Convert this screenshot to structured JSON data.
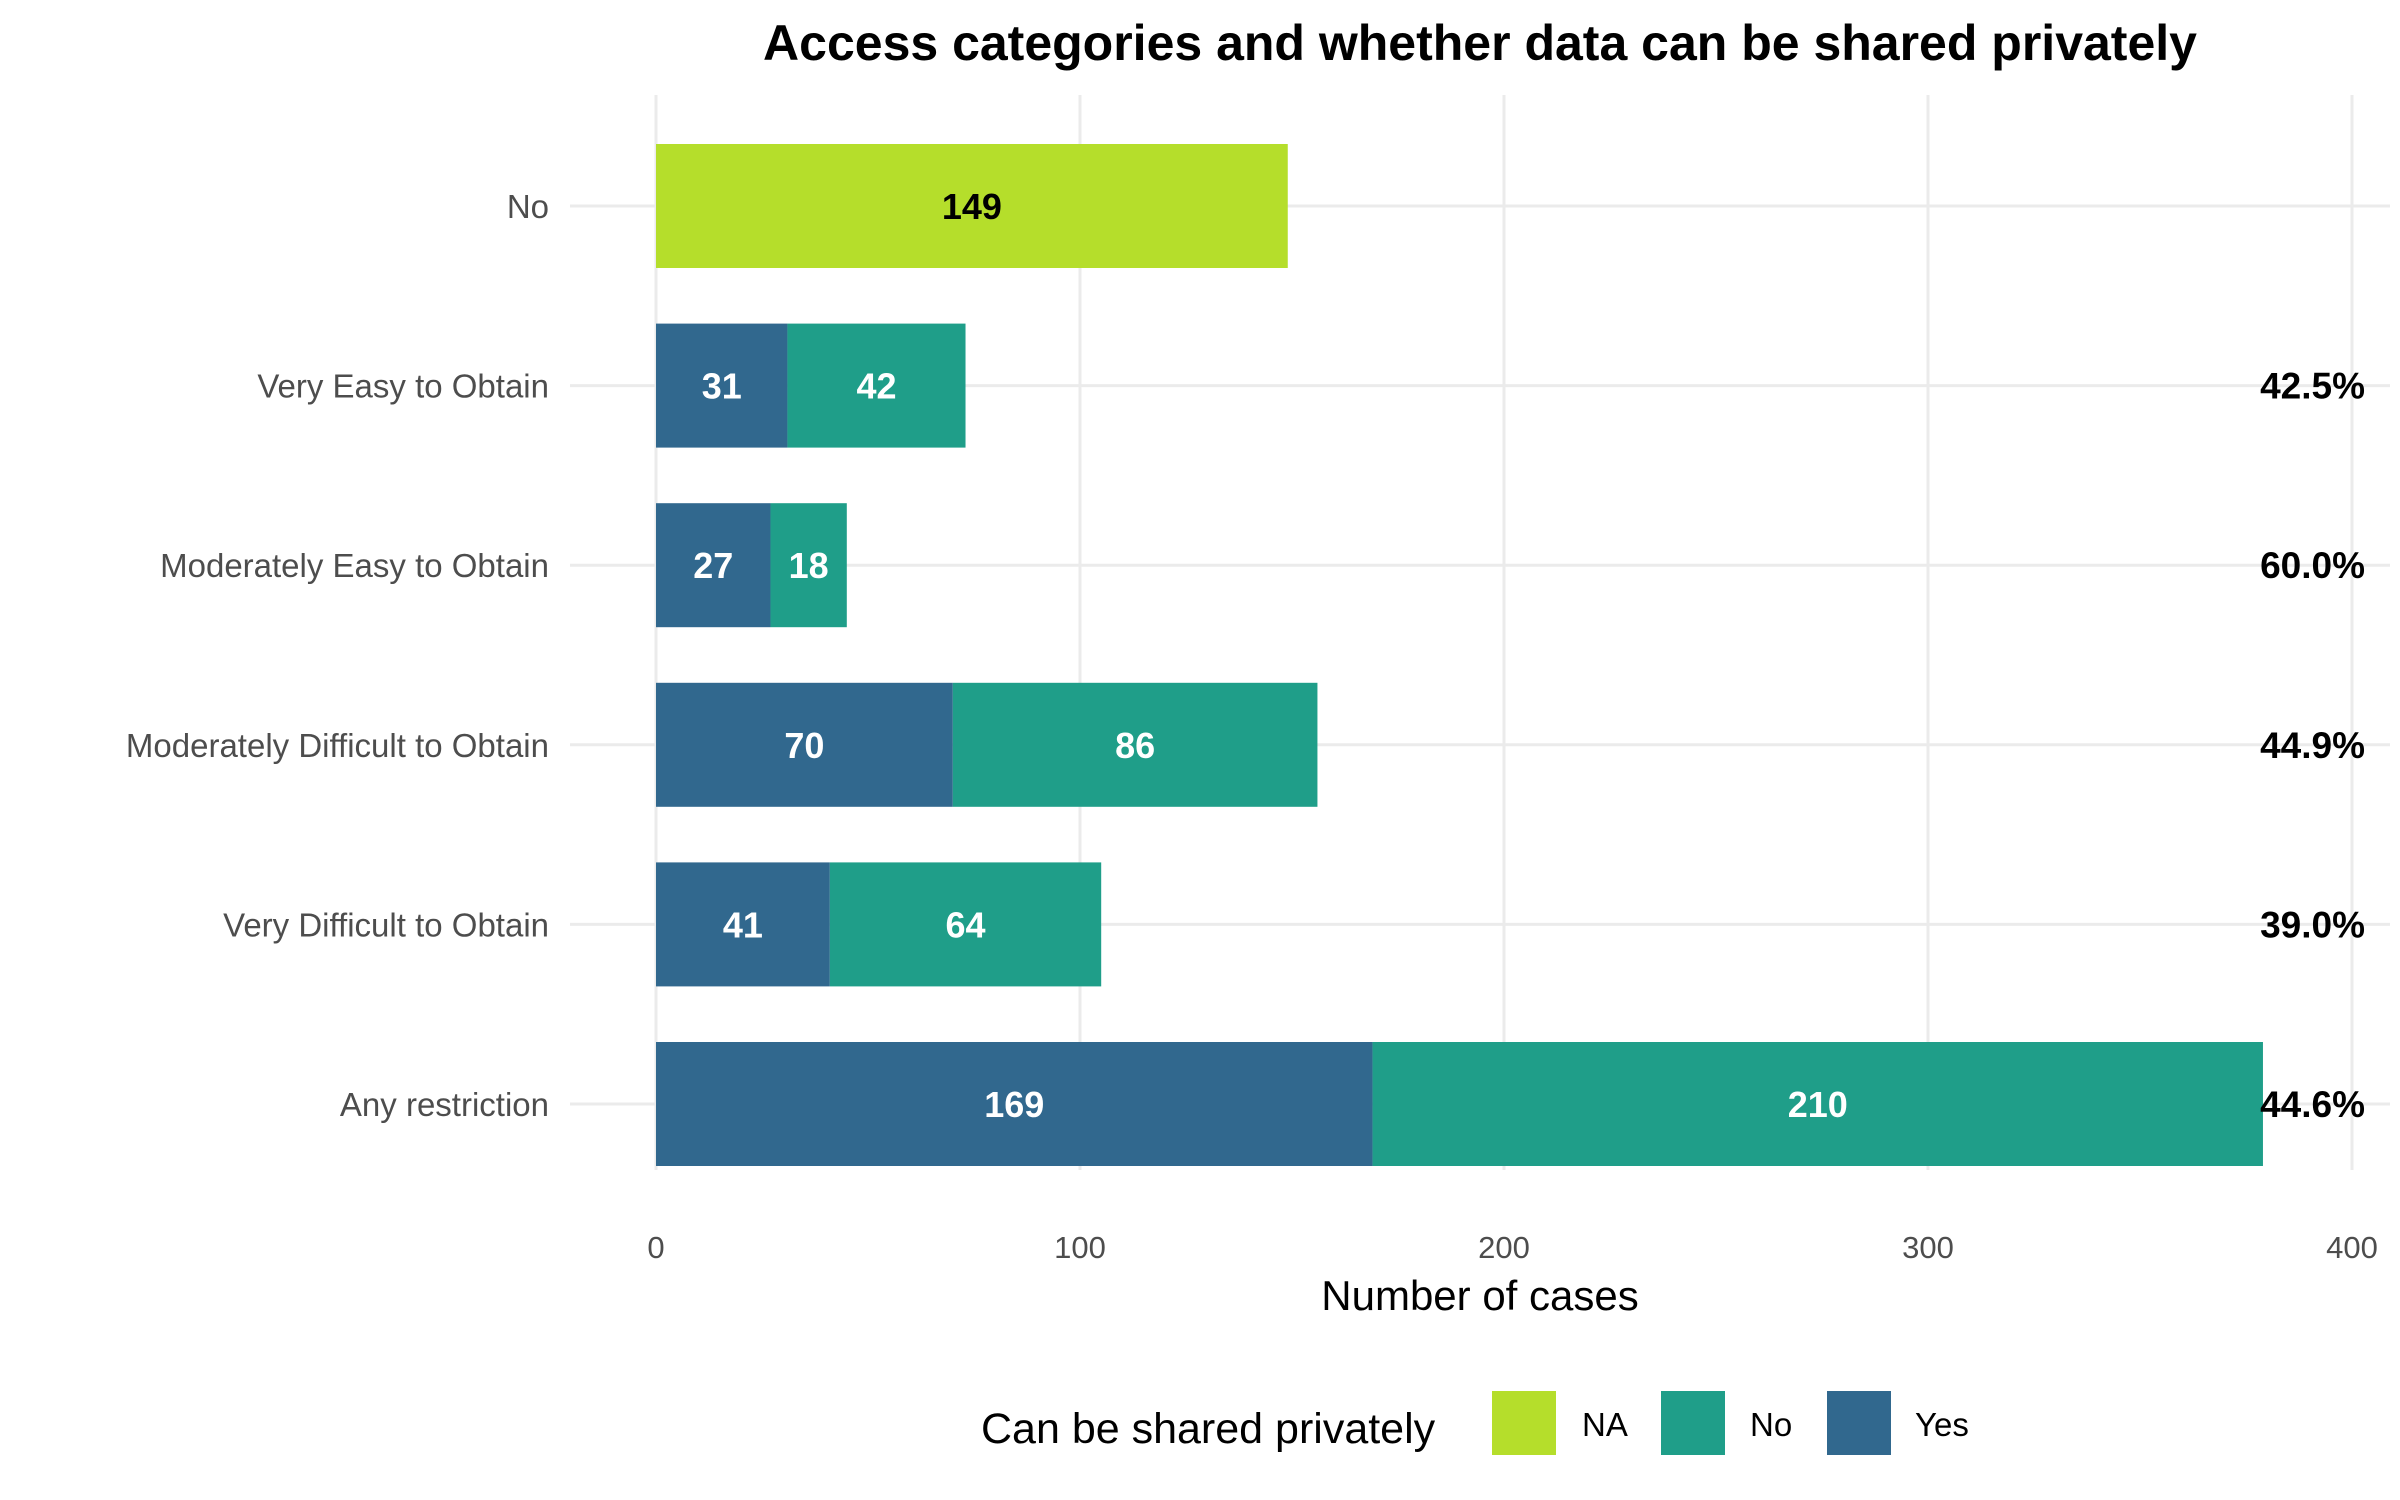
{
  "chart_data": {
    "type": "bar",
    "orientation": "horizontal",
    "stacked": true,
    "title": "Access categories and whether data can be shared privately",
    "xlabel": "Number of cases",
    "ylabel": "",
    "xlim": [
      0,
      400
    ],
    "x_ticks": [
      0,
      100,
      200,
      300,
      400
    ],
    "grid": true,
    "legend": {
      "title": "Can be shared privately",
      "position": "bottom",
      "entries": [
        {
          "name": "NA",
          "color": "#b5de2b"
        },
        {
          "name": "No",
          "color": "#1f9e89"
        },
        {
          "name": "Yes",
          "color": "#31688e"
        }
      ]
    },
    "categories": [
      "No",
      "Very Easy to Obtain",
      "Moderately Easy to Obtain",
      "Moderately Difficult to Obtain",
      "Very Difficult to Obtain",
      "Any restriction"
    ],
    "series": [
      {
        "name": "Yes",
        "color": "#31688e",
        "label_color": "#ffffff",
        "values": [
          0,
          31,
          27,
          70,
          41,
          169
        ]
      },
      {
        "name": "No",
        "color": "#1f9e89",
        "label_color": "#ffffff",
        "values": [
          0,
          42,
          18,
          86,
          64,
          210
        ]
      },
      {
        "name": "NA",
        "color": "#b5de2b",
        "label_color": "#000000",
        "values": [
          149,
          0,
          0,
          0,
          0,
          0
        ]
      }
    ],
    "percent_labels": [
      "",
      "42.5%",
      "60.0%",
      "44.9%",
      "39.0%",
      "44.6%"
    ]
  }
}
